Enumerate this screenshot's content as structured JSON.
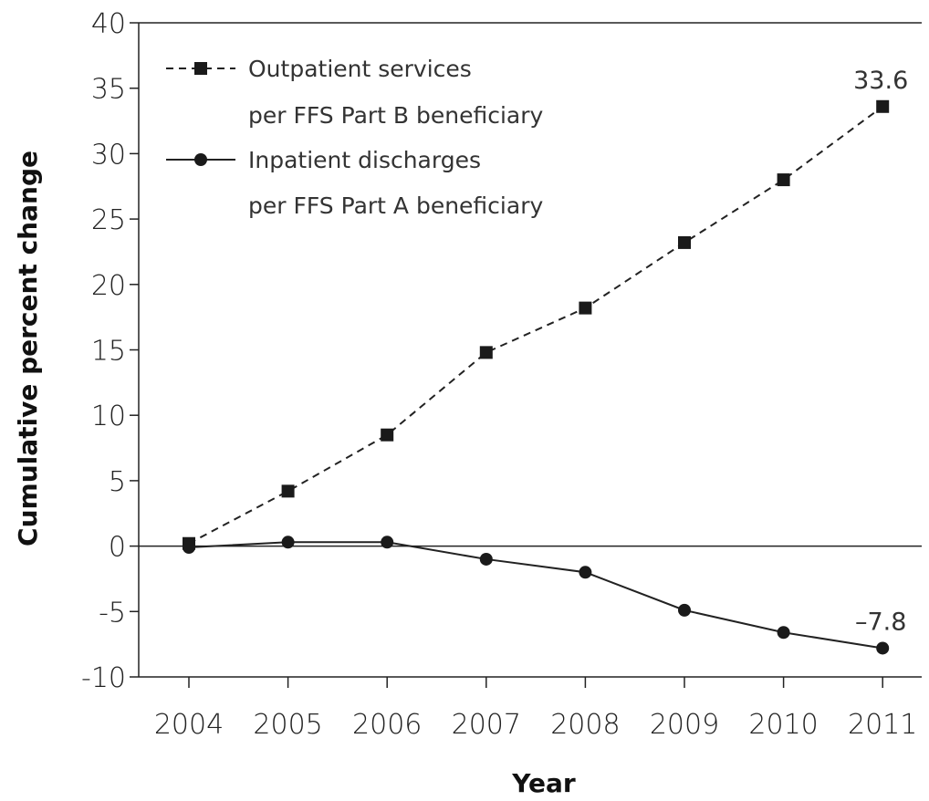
{
  "chart_data": {
    "type": "line",
    "x": [
      "2004",
      "2005",
      "2006",
      "2007",
      "2008",
      "2009",
      "2010",
      "2011"
    ],
    "xlabel": "Year",
    "ylabel": "Cumulative percent change",
    "ylim": [
      -10,
      40
    ],
    "yticks": [
      "-10",
      "-5",
      "0",
      "5",
      "10",
      "15",
      "20",
      "25",
      "30",
      "35",
      "40"
    ],
    "grid": false,
    "legend_position": "top-left",
    "series": [
      {
        "name_line1": "Outpatient services",
        "name_line2": "per FFS Part B beneficiary",
        "marker": "square",
        "line_style": "dashed",
        "values": [
          0.2,
          4.2,
          8.5,
          14.8,
          18.2,
          23.2,
          28.0,
          33.6
        ],
        "end_label": "33.6"
      },
      {
        "name_line1": "Inpatient discharges",
        "name_line2": "per FFS Part A beneficiary",
        "marker": "circle",
        "line_style": "solid",
        "values": [
          -0.1,
          0.3,
          0.3,
          -1.0,
          -2.0,
          -4.9,
          -6.6,
          -7.8
        ],
        "end_label": "–7.8"
      }
    ]
  }
}
